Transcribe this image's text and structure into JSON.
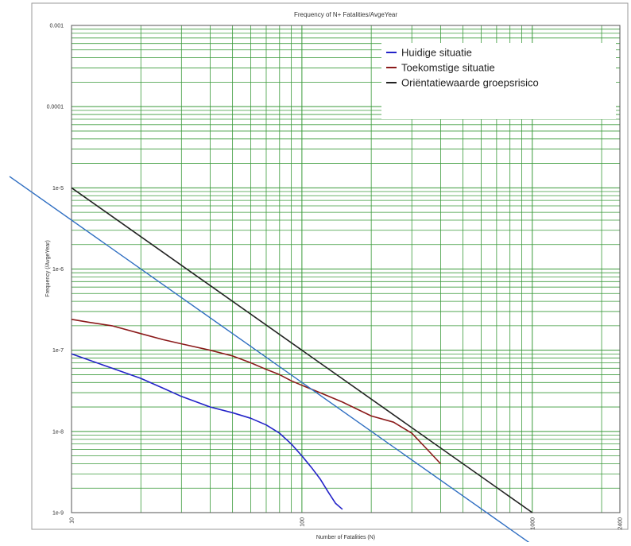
{
  "chart_data": {
    "type": "line",
    "title": "Frequency of N+ Fatalities/AvgeYear",
    "xlabel": "Number of Fatalities (N)",
    "ylabel": "Frequency (/AvgeYear)",
    "x_scale": "log",
    "y_scale": "log",
    "xlim": [
      10,
      2400
    ],
    "ylim": [
      1e-09,
      0.001
    ],
    "grid": true,
    "legend_position": "top-right",
    "x_tick_labels": [
      {
        "value": 10,
        "label": "10"
      },
      {
        "value": 100,
        "label": "100"
      },
      {
        "value": 1000,
        "label": "1000"
      },
      {
        "value": 2400,
        "label": "2400"
      }
    ],
    "y_tick_labels": [
      {
        "value": 0.001,
        "label": "0.001"
      },
      {
        "value": 0.0001,
        "label": "0.0001"
      },
      {
        "value": 1e-05,
        "label": "1e-5"
      },
      {
        "value": 1e-06,
        "label": "1e-6"
      },
      {
        "value": 1e-07,
        "label": "1e-7"
      },
      {
        "value": 1e-08,
        "label": "1e-8"
      },
      {
        "value": 1e-09,
        "label": "1e-9"
      }
    ],
    "series": [
      {
        "name": "Huidige situatie",
        "color": "#2323c8",
        "points": [
          [
            10,
            9e-08
          ],
          [
            12,
            7.5e-08
          ],
          [
            15,
            6e-08
          ],
          [
            20,
            4.5e-08
          ],
          [
            25,
            3.4e-08
          ],
          [
            30,
            2.7e-08
          ],
          [
            40,
            2e-08
          ],
          [
            50,
            1.7e-08
          ],
          [
            60,
            1.45e-08
          ],
          [
            70,
            1.2e-08
          ],
          [
            80,
            9.5e-09
          ],
          [
            90,
            7e-09
          ],
          [
            100,
            5e-09
          ],
          [
            110,
            3.6e-09
          ],
          [
            120,
            2.6e-09
          ],
          [
            130,
            1.8e-09
          ],
          [
            140,
            1.3e-09
          ],
          [
            150,
            1.1e-09
          ]
        ]
      },
      {
        "name": "Toekomstige situatie",
        "color": "#8b1a1a",
        "points": [
          [
            10,
            2.4e-07
          ],
          [
            12,
            2.2e-07
          ],
          [
            15,
            2e-07
          ],
          [
            20,
            1.6e-07
          ],
          [
            25,
            1.35e-07
          ],
          [
            30,
            1.2e-07
          ],
          [
            40,
            1e-07
          ],
          [
            50,
            8.5e-08
          ],
          [
            60,
            7e-08
          ],
          [
            70,
            5.8e-08
          ],
          [
            80,
            5e-08
          ],
          [
            90,
            4.2e-08
          ],
          [
            100,
            3.7e-08
          ],
          [
            120,
            3e-08
          ],
          [
            150,
            2.3e-08
          ],
          [
            200,
            1.55e-08
          ],
          [
            250,
            1.3e-08
          ],
          [
            300,
            9.5e-09
          ],
          [
            350,
            6e-09
          ],
          [
            400,
            4e-09
          ]
        ]
      },
      {
        "name": "Oriëntatiewaarde groepsrisico",
        "color": "#222222",
        "points": [
          [
            10,
            1e-05
          ],
          [
            1000,
            1e-09
          ]
        ]
      }
    ],
    "reference_line": {
      "color": "#2f6ec2",
      "points": [
        [
          10,
          4e-06
        ],
        [
          700,
          8.2e-10
        ]
      ]
    }
  }
}
